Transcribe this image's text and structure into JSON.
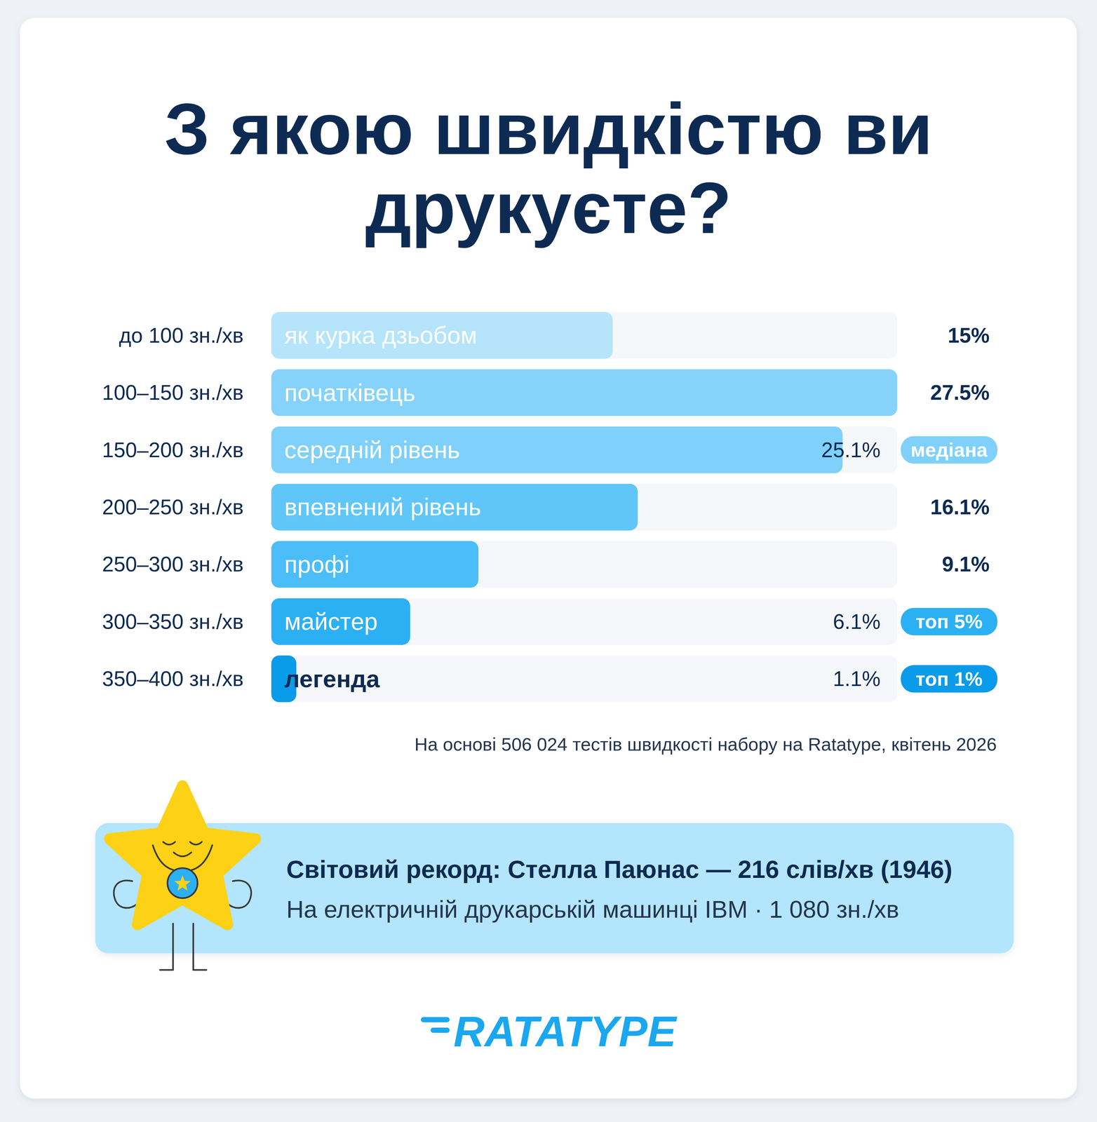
{
  "chart_data": {
    "type": "bar",
    "orientation": "horizontal",
    "title": "З якою швидкістю ви друкуєте?",
    "categories": [
      "до 100 зн./хв",
      "100–150 зн./хв",
      "150–200 зн./хв",
      "200–250 зн./хв",
      "250–300 зн./хв",
      "300–350 зн./хв",
      "350–400 зн./хв"
    ],
    "level_names": [
      "як курка дзьобом",
      "початківець",
      "середній рівень",
      "впевнений рівень",
      "профі",
      "майстер",
      "легенда"
    ],
    "values": [
      15,
      27.5,
      25.1,
      16.1,
      9.1,
      6.1,
      1.1
    ],
    "value_labels": [
      "15%",
      "27.5%",
      "25.1%",
      "16.1%",
      "9.1%",
      "6.1%",
      "1.1%"
    ],
    "colors": [
      "#b5e4fb",
      "#85d3fb",
      "#7fd0fa",
      "#60c6f9",
      "#4bbdf8",
      "#2cb0f4",
      "#0a9bea"
    ],
    "data_labels": true,
    "xlim": [
      0,
      27.5
    ],
    "tick_labels": false,
    "annotations": [
      {
        "category": "150–200 зн./хв",
        "text": "медіана"
      },
      {
        "category": "300–350 зн./хв",
        "text": "топ 5%"
      },
      {
        "category": "350–400 зн./хв",
        "text": "топ 1%"
      }
    ],
    "source": "На основі 506 024 тестів швидкості набору на Ratatype, квітень 2026",
    "record": {
      "title": "Світовий рекорд: Стелла Паюнас — 216 слів/хв (1946)",
      "text": "На електричній друкарській машинці IBM · 1 080 зн./хв"
    },
    "logo": "RATATYPE"
  }
}
